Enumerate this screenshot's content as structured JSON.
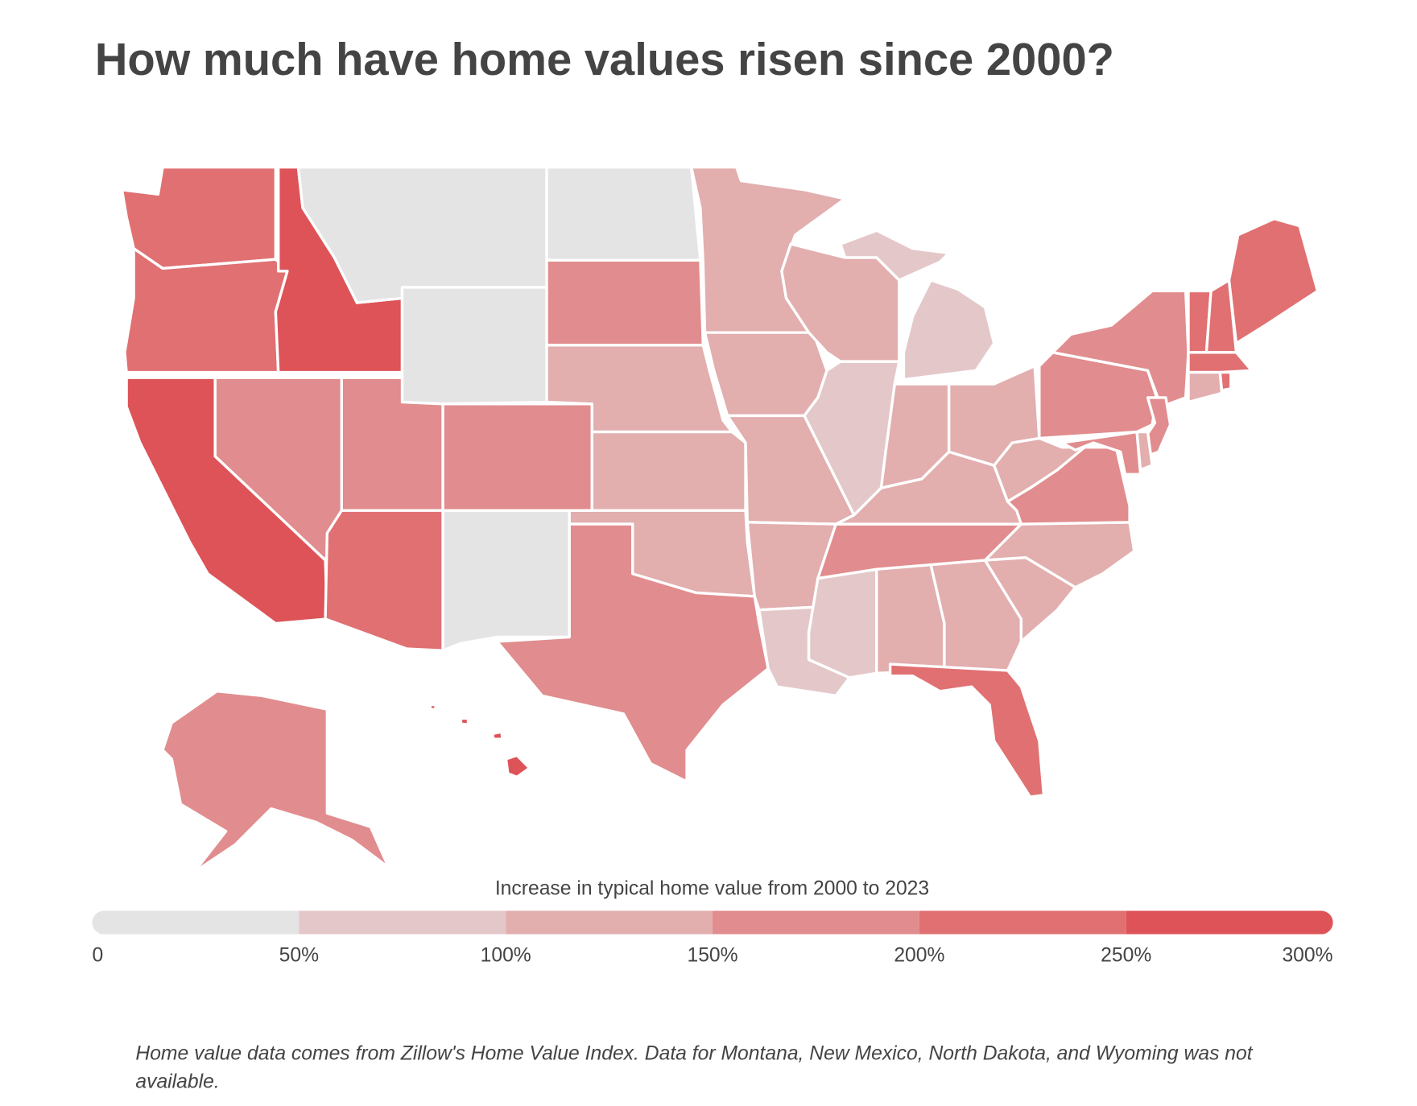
{
  "chart_data": {
    "type": "choropleth",
    "title": "How much have home values risen since 2000?",
    "legend_title": "Increase in typical home value from 2000 to 2023",
    "values": [
      225,
      225,
      275,
      null,
      null,
      null,
      175,
      125,
      125,
      125,
      175,
      null,
      175,
      175,
      175,
      275,
      225,
      125,
      125,
      125,
      125,
      75,
      75,
      125,
      125,
      225,
      125,
      125,
      175,
      125,
      175,
      125,
      125,
      125,
      75,
      125,
      75,
      175,
      175,
      225,
      225,
      225,
      225,
      125,
      225,
      175,
      125,
      175,
      175,
      275
    ],
    "xlim": [
      0,
      300
    ],
    "xticks": [
      0,
      {
        "value": 50,
        "label": "50%"
      },
      {
        "value": 100,
        "label": "100%"
      },
      {
        "value": 150,
        "label": "150%"
      },
      {
        "value": 200,
        "label": "200%"
      },
      {
        "value": 250,
        "label": "250%"
      },
      {
        "value": 300,
        "label": "300%"
      }
    ],
    "colors": [
      "#e4e4e4",
      "#e4c8c9",
      "#e2aeae",
      "#e18c8e",
      "#e07072",
      "#de5358"
    ],
    "missing_color": "#e4e4e4",
    "note": "Home value data comes from Zillow's Home Value Index. Data for Montana, New Mexico, North Dakota, and Wyoming was not available."
  }
}
